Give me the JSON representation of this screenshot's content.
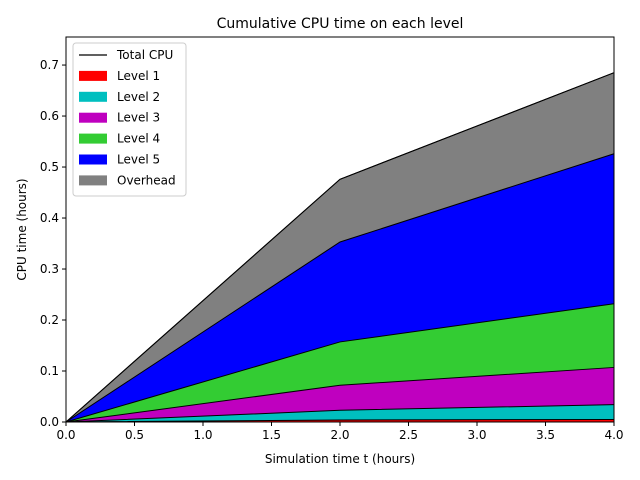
{
  "chart_data": {
    "type": "area",
    "title": "Cumulative CPU time on each level",
    "xlabel": "Simulation time t (hours)",
    "ylabel": "CPU time (hours)",
    "x": [
      0.0,
      2.0,
      4.0
    ],
    "xlim": [
      0.0,
      4.0
    ],
    "ylim": [
      0.0,
      0.755
    ],
    "xticks": [
      0.0,
      0.5,
      1.0,
      1.5,
      2.0,
      2.5,
      3.0,
      3.5,
      4.0
    ],
    "xtick_labels": [
      "0.0",
      "0.5",
      "1.0",
      "1.5",
      "2.0",
      "2.5",
      "3.0",
      "3.5",
      "4.0"
    ],
    "yticks": [
      0.0,
      0.1,
      0.2,
      0.3,
      0.4,
      0.5,
      0.6,
      0.7
    ],
    "ytick_labels": [
      "0.0",
      "0.1",
      "0.2",
      "0.3",
      "0.4",
      "0.5",
      "0.6",
      "0.7"
    ],
    "stacked": true,
    "series": [
      {
        "name": "Level 1",
        "color": "#ff0000",
        "values": [
          0.0,
          0.004,
          0.005
        ]
      },
      {
        "name": "Level 2",
        "color": "#00bfbf",
        "values": [
          0.0,
          0.019,
          0.029
        ]
      },
      {
        "name": "Level 3",
        "color": "#bf00bf",
        "values": [
          0.0,
          0.049,
          0.073
        ]
      },
      {
        "name": "Level 4",
        "color": "#33cc33",
        "values": [
          0.0,
          0.085,
          0.125
        ]
      },
      {
        "name": "Level 5",
        "color": "#0000ff",
        "values": [
          0.0,
          0.196,
          0.294
        ]
      },
      {
        "name": "Overhead",
        "color": "#808080",
        "values": [
          0.0,
          0.123,
          0.159
        ]
      }
    ],
    "total_line": {
      "name": "Total CPU",
      "color": "#000000",
      "values": [
        0.0,
        0.476,
        0.685
      ]
    },
    "legend_position": "upper-left",
    "legend_order": [
      "Total CPU",
      "Level 1",
      "Level 2",
      "Level 3",
      "Level 4",
      "Level 5",
      "Overhead"
    ],
    "grid": false
  }
}
